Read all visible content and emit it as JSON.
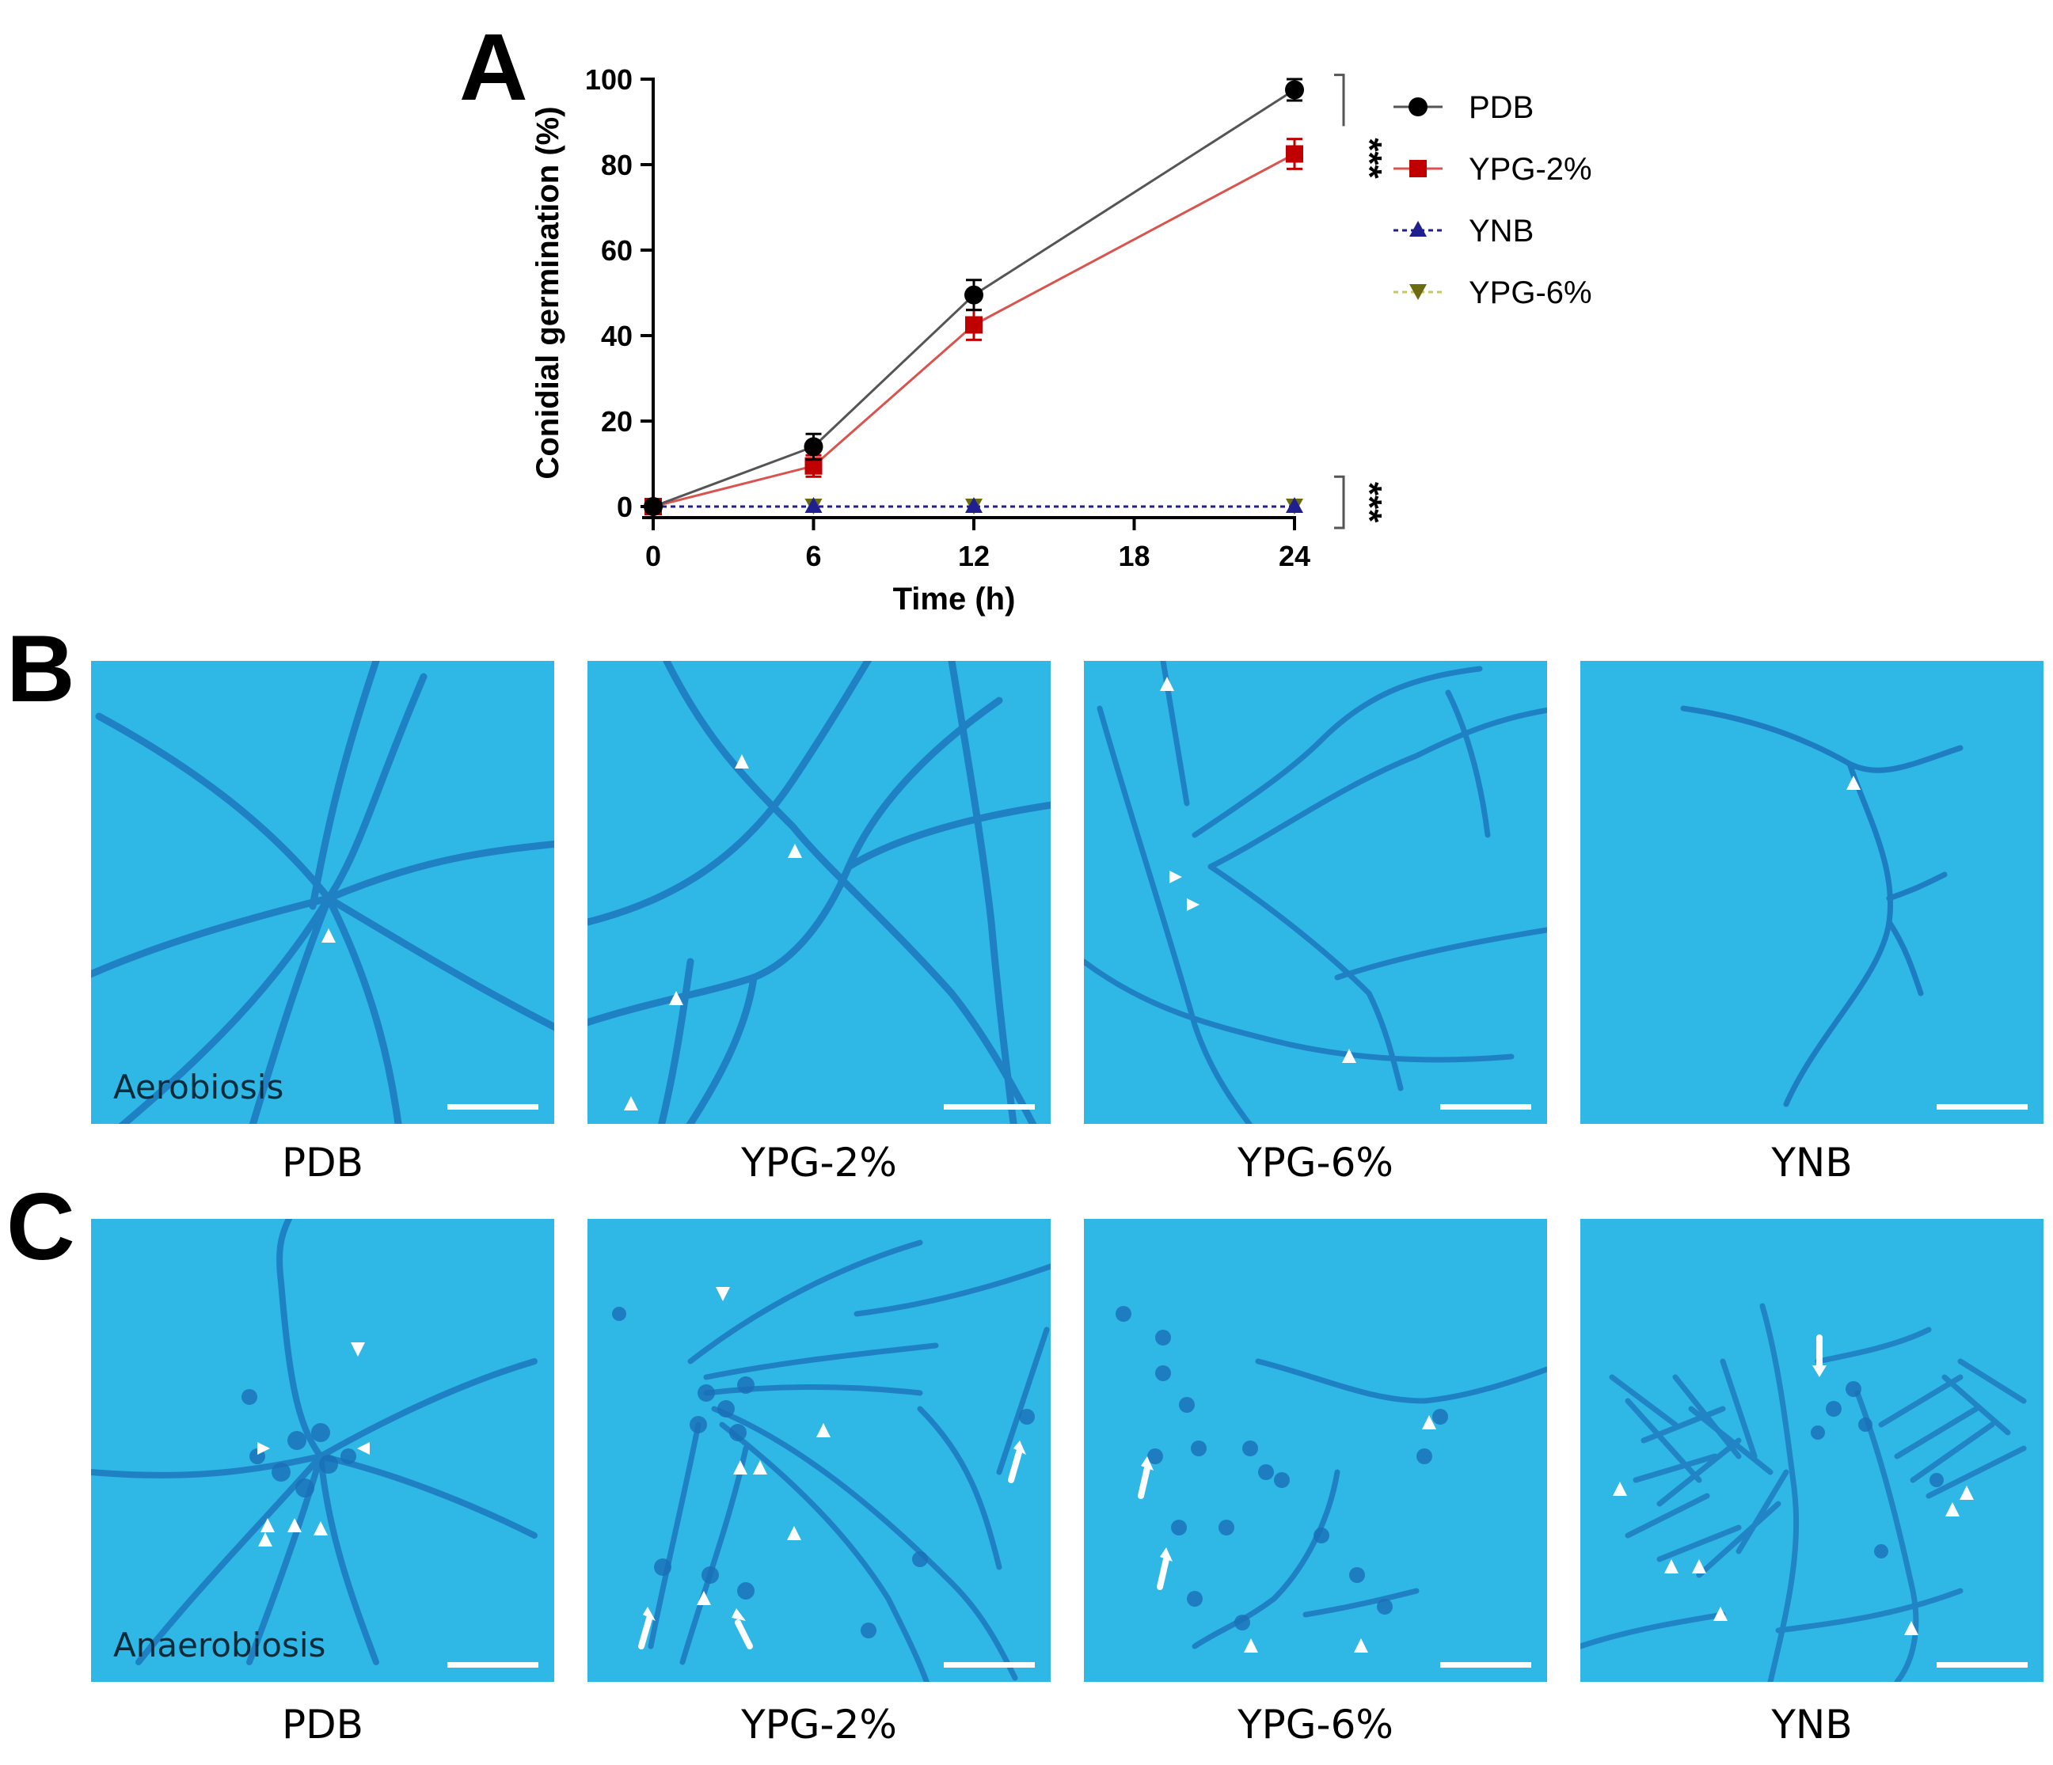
{
  "panels": {
    "a": "A",
    "b": "B",
    "c": "C"
  },
  "chart_data": {
    "type": "line",
    "x": [
      0,
      6,
      12,
      24
    ],
    "xlabel": "Time (h)",
    "ylabel": "Conidial germination (%)",
    "xticks": [
      0,
      6,
      12,
      18,
      24
    ],
    "yticks": [
      0,
      20,
      40,
      60,
      80,
      100
    ],
    "xlim": [
      0,
      24
    ],
    "ylim": [
      0,
      100
    ],
    "series": [
      {
        "name": "PDB",
        "values": [
          0,
          14,
          49.5,
          97.5
        ],
        "errors": [
          0,
          3,
          3.5,
          2.5
        ],
        "color": "#000000",
        "line_color": "#555555",
        "marker": "circle",
        "style": "solid"
      },
      {
        "name": "YPG-2%",
        "values": [
          0,
          9.5,
          42.5,
          82.5
        ],
        "errors": [
          0,
          2.5,
          3.5,
          3.5
        ],
        "color": "#c00000",
        "line_color": "#d9534f",
        "marker": "square",
        "style": "solid"
      },
      {
        "name": "YNB",
        "values": [
          0,
          0,
          0,
          0
        ],
        "errors": [
          0,
          0,
          0,
          0
        ],
        "color": "#1f1f8f",
        "line_color": "#1f1f8f",
        "marker": "triangle-up",
        "style": "dotted"
      },
      {
        "name": "YPG-6%",
        "values": [
          0,
          0,
          0,
          0
        ],
        "errors": [
          0,
          0,
          0,
          0
        ],
        "color": "#6b6b10",
        "line_color": "#c8c860",
        "marker": "triangle-down",
        "style": "dotted"
      }
    ],
    "annotations": [
      {
        "text": "***",
        "between": [
          "PDB",
          "YPG-2%"
        ],
        "at_x": 24
      },
      {
        "text": "***",
        "between": [
          "YNB",
          "YPG-6%"
        ],
        "at_x": 24
      }
    ]
  },
  "rows": [
    {
      "condition": "Aerobiosis",
      "labels": [
        "PDB",
        "YPG-2%",
        "YPG-6%",
        "YNB"
      ]
    },
    {
      "condition": "Anaerobiosis",
      "labels": [
        "PDB",
        "YPG-2%",
        "YPG-6%",
        "YNB"
      ]
    }
  ],
  "colors": {
    "micro_background": "#2fb8e6",
    "hyphae": "#1a6fb8"
  }
}
